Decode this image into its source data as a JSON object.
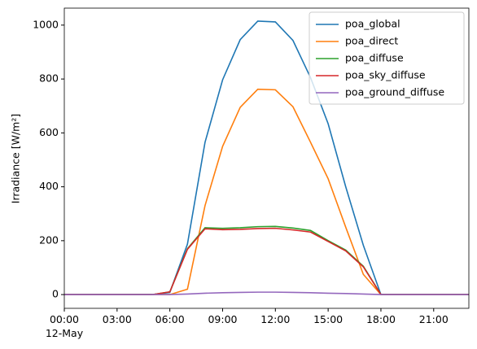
{
  "chart_data": {
    "type": "line",
    "ylabel": "Irradiance [W/m²]",
    "x": [
      0,
      1,
      2,
      3,
      4,
      5,
      6,
      7,
      8,
      9,
      10,
      11,
      12,
      13,
      14,
      15,
      16,
      17,
      18,
      19,
      20,
      21,
      22,
      23
    ],
    "date_label": "12-May",
    "xlim": [
      0,
      23
    ],
    "xticks": [
      {
        "value": 0,
        "label": "00:00"
      },
      {
        "value": 3,
        "label": "03:00"
      },
      {
        "value": 6,
        "label": "06:00"
      },
      {
        "value": 9,
        "label": "09:00"
      },
      {
        "value": 12,
        "label": "12:00"
      },
      {
        "value": 15,
        "label": "15:00"
      },
      {
        "value": 18,
        "label": "18:00"
      },
      {
        "value": 21,
        "label": "21:00"
      }
    ],
    "ylim": [
      -51,
      1063
    ],
    "yticks": [
      0,
      200,
      400,
      600,
      800,
      1000
    ],
    "legend": "upper right",
    "series": [
      {
        "name": "poa_global",
        "color": "#1f77b4",
        "values": [
          0,
          0,
          0,
          0,
          0,
          0,
          8,
          187,
          565,
          797,
          946,
          1015,
          1012,
          943,
          805,
          634,
          400,
          183,
          0,
          0,
          0,
          0,
          0,
          0
        ]
      },
      {
        "name": "poa_direct",
        "color": "#ff7f0e",
        "values": [
          0,
          0,
          0,
          0,
          0,
          0,
          0,
          20,
          330,
          550,
          695,
          762,
          760,
          697,
          565,
          430,
          250,
          75,
          0,
          0,
          0,
          0,
          0,
          0
        ]
      },
      {
        "name": "poa_diffuse",
        "color": "#2ca02c",
        "values": [
          0,
          0,
          0,
          0,
          0,
          0,
          10,
          170,
          248,
          246,
          248,
          252,
          253,
          247,
          238,
          200,
          165,
          105,
          0,
          0,
          0,
          0,
          0,
          0
        ]
      },
      {
        "name": "poa_sky_diffuse",
        "color": "#d62728",
        "values": [
          0,
          0,
          0,
          0,
          0,
          0,
          10,
          168,
          244,
          241,
          242,
          245,
          246,
          240,
          232,
          197,
          162,
          103,
          0,
          0,
          0,
          0,
          0,
          0
        ]
      },
      {
        "name": "poa_ground_diffuse",
        "color": "#9467bd",
        "values": [
          0,
          0,
          0,
          0,
          0,
          0,
          0,
          2,
          5,
          7,
          8,
          9,
          9,
          8,
          7,
          5,
          4,
          2,
          0,
          0,
          0,
          0,
          0,
          0
        ]
      }
    ]
  }
}
